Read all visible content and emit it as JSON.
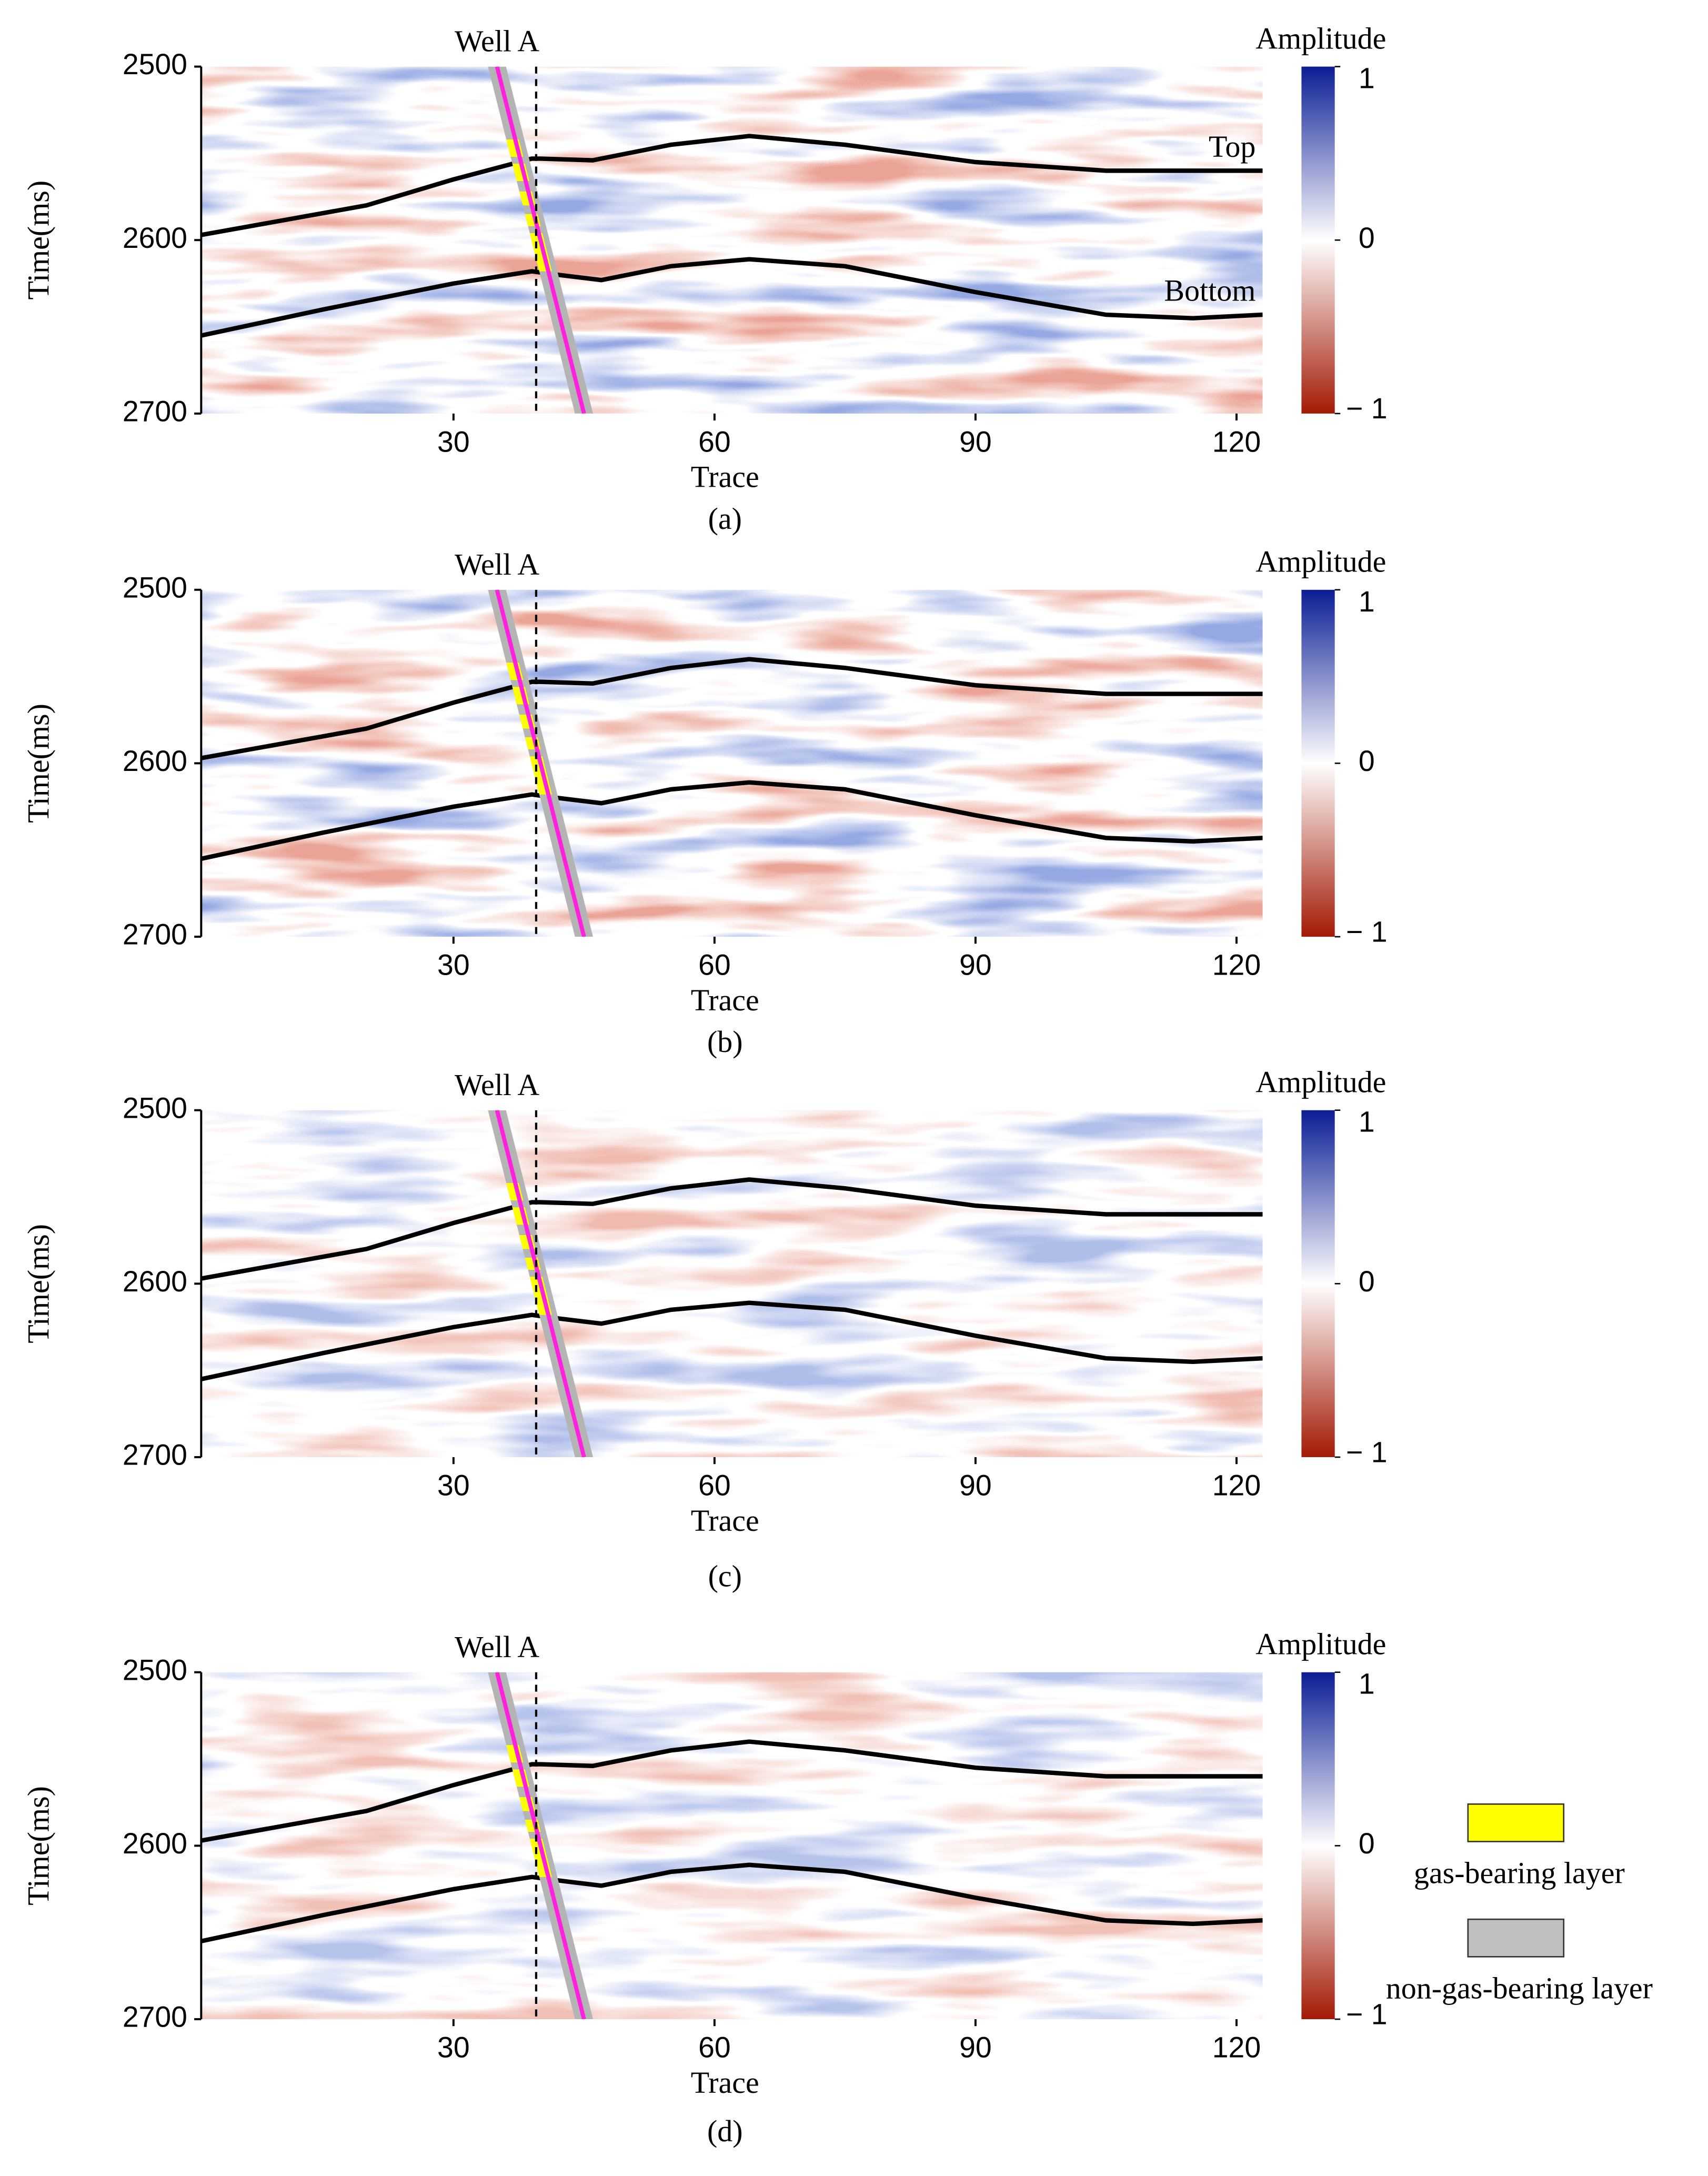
{
  "chart_data": [
    {
      "type": "seismic",
      "annotation": "Well A",
      "xlabel": "Trace",
      "ylabel": "Time(ms)",
      "label": "(a)",
      "xlim": [
        1,
        123
      ],
      "ylim": [
        2500,
        2700
      ],
      "xticks": [
        30,
        60,
        90,
        120
      ],
      "yticks": [
        2500,
        2600,
        2700
      ],
      "well_trace": 39.5,
      "well": {
        "x": [
          35,
          45
        ],
        "y": [
          2500,
          2700
        ],
        "color": "#ff22dd",
        "layer_color": "#b4b4b4",
        "gas_color": "#ffff00",
        "gas_zones": [
          [
            2542,
            2552
          ],
          [
            2556,
            2566
          ],
          [
            2572,
            2580
          ],
          [
            2585,
            2592
          ],
          [
            2596,
            2618
          ]
        ]
      },
      "series": [
        {
          "name": "Top",
          "color": "#000000",
          "x": [
            1,
            20,
            30,
            39,
            40,
            46,
            55,
            64,
            75,
            90,
            105,
            123
          ],
          "values": [
            2597,
            2580,
            2565,
            2553,
            2553,
            2554,
            2545,
            2540,
            2545,
            2555,
            2560,
            2560
          ]
        },
        {
          "name": "Bottom",
          "color": "#000000",
          "x": [
            1,
            15,
            30,
            39,
            42,
            47,
            55,
            64,
            75,
            90,
            105,
            115,
            123
          ],
          "values": [
            2655,
            2640,
            2625,
            2618,
            2620,
            2623,
            2615,
            2611,
            2615,
            2630,
            2643,
            2645,
            2643
          ]
        }
      ],
      "colorbar": {
        "title": "Amplitude",
        "clim": [
          -1,
          1
        ],
        "ticks": [
          1,
          0,
          {
            "value": -1,
            "label": "− 1"
          }
        ],
        "colormap": [
          "#a31a05",
          "#ffffff",
          "#0b1d95"
        ]
      }
    },
    {
      "type": "seismic",
      "annotation": "Well A",
      "xlabel": "Trace",
      "ylabel": "Time(ms)",
      "label": "(b)",
      "xlim": [
        1,
        123
      ],
      "ylim": [
        2500,
        2700
      ],
      "xticks": [
        30,
        60,
        90,
        120
      ],
      "yticks": [
        2500,
        2600,
        2700
      ],
      "well_trace": 39.5,
      "well": {
        "x": [
          35,
          45
        ],
        "y": [
          2500,
          2700
        ],
        "color": "#ff22dd",
        "layer_color": "#b4b4b4",
        "gas_color": "#ffff00",
        "gas_zones": [
          [
            2542,
            2552
          ],
          [
            2556,
            2566
          ],
          [
            2572,
            2580
          ],
          [
            2585,
            2592
          ],
          [
            2596,
            2618
          ]
        ]
      },
      "series": [
        {
          "color": "#000000",
          "x": [
            1,
            20,
            30,
            39,
            40,
            46,
            55,
            64,
            75,
            90,
            105,
            123
          ],
          "values": [
            2597,
            2580,
            2565,
            2553,
            2553,
            2554,
            2545,
            2540,
            2545,
            2555,
            2560,
            2560
          ]
        },
        {
          "color": "#000000",
          "x": [
            1,
            15,
            30,
            39,
            42,
            47,
            55,
            64,
            75,
            90,
            105,
            115,
            123
          ],
          "values": [
            2655,
            2640,
            2625,
            2618,
            2620,
            2623,
            2615,
            2611,
            2615,
            2630,
            2643,
            2645,
            2643
          ]
        }
      ],
      "colorbar": {
        "title": "Amplitude",
        "clim": [
          -1,
          1
        ],
        "ticks": [
          1,
          0,
          {
            "value": -1,
            "label": "− 1"
          }
        ],
        "colormap": [
          "#a31a05",
          "#ffffff",
          "#0b1d95"
        ]
      }
    },
    {
      "type": "seismic",
      "annotation": "Well A",
      "xlabel": "Trace",
      "ylabel": "Time(ms)",
      "label": "(c)",
      "xlim": [
        1,
        123
      ],
      "ylim": [
        2500,
        2700
      ],
      "xticks": [
        30,
        60,
        90,
        120
      ],
      "yticks": [
        2500,
        2600,
        2700
      ],
      "well_trace": 39.5,
      "well": {
        "x": [
          35,
          45
        ],
        "y": [
          2500,
          2700
        ],
        "color": "#ff22dd",
        "layer_color": "#b4b4b4",
        "gas_color": "#ffff00",
        "gas_zones": [
          [
            2542,
            2552
          ],
          [
            2556,
            2566
          ],
          [
            2572,
            2580
          ],
          [
            2585,
            2592
          ],
          [
            2596,
            2618
          ]
        ]
      },
      "series": [
        {
          "color": "#000000",
          "x": [
            1,
            20,
            30,
            39,
            40,
            46,
            55,
            64,
            75,
            90,
            105,
            123
          ],
          "values": [
            2597,
            2580,
            2565,
            2553,
            2553,
            2554,
            2545,
            2540,
            2545,
            2555,
            2560,
            2560
          ]
        },
        {
          "color": "#000000",
          "x": [
            1,
            15,
            30,
            39,
            42,
            47,
            55,
            64,
            75,
            90,
            105,
            115,
            123
          ],
          "values": [
            2655,
            2640,
            2625,
            2618,
            2620,
            2623,
            2615,
            2611,
            2615,
            2630,
            2643,
            2645,
            2643
          ]
        }
      ],
      "colorbar": {
        "title": "Amplitude",
        "clim": [
          -1,
          1
        ],
        "ticks": [
          1,
          0,
          {
            "value": -1,
            "label": "− 1"
          }
        ],
        "colormap": [
          "#a31a05",
          "#ffffff",
          "#0b1d95"
        ]
      }
    },
    {
      "type": "seismic",
      "annotation": "Well A",
      "xlabel": "Trace",
      "ylabel": "Time(ms)",
      "label": "(d)",
      "xlim": [
        1,
        123
      ],
      "ylim": [
        2500,
        2700
      ],
      "xticks": [
        30,
        60,
        90,
        120
      ],
      "yticks": [
        2500,
        2600,
        2700
      ],
      "well_trace": 39.5,
      "well": {
        "x": [
          35,
          45
        ],
        "y": [
          2500,
          2700
        ],
        "color": "#ff22dd",
        "layer_color": "#b4b4b4",
        "gas_color": "#ffff00",
        "gas_zones": [
          [
            2542,
            2552
          ],
          [
            2556,
            2566
          ],
          [
            2572,
            2580
          ],
          [
            2585,
            2592
          ],
          [
            2596,
            2618
          ]
        ]
      },
      "series": [
        {
          "color": "#000000",
          "x": [
            1,
            20,
            30,
            39,
            40,
            46,
            55,
            64,
            75,
            90,
            105,
            123
          ],
          "values": [
            2597,
            2580,
            2565,
            2553,
            2553,
            2554,
            2545,
            2540,
            2545,
            2555,
            2560,
            2560
          ]
        },
        {
          "color": "#000000",
          "x": [
            1,
            15,
            30,
            39,
            42,
            47,
            55,
            64,
            75,
            90,
            105,
            115,
            123
          ],
          "values": [
            2655,
            2640,
            2625,
            2618,
            2620,
            2623,
            2615,
            2611,
            2615,
            2630,
            2643,
            2645,
            2643
          ]
        }
      ],
      "colorbar": {
        "title": "Amplitude",
        "clim": [
          -1,
          1
        ],
        "ticks": [
          1,
          0,
          {
            "value": -1,
            "label": "− 1"
          }
        ],
        "colormap": [
          "#a31a05",
          "#ffffff",
          "#0b1d95"
        ]
      },
      "legend": [
        {
          "name": "gas-bearing layer",
          "color": "#ffff00"
        },
        {
          "name": "non-gas-bearing layer",
          "color": "#c0c0c0"
        }
      ]
    }
  ]
}
